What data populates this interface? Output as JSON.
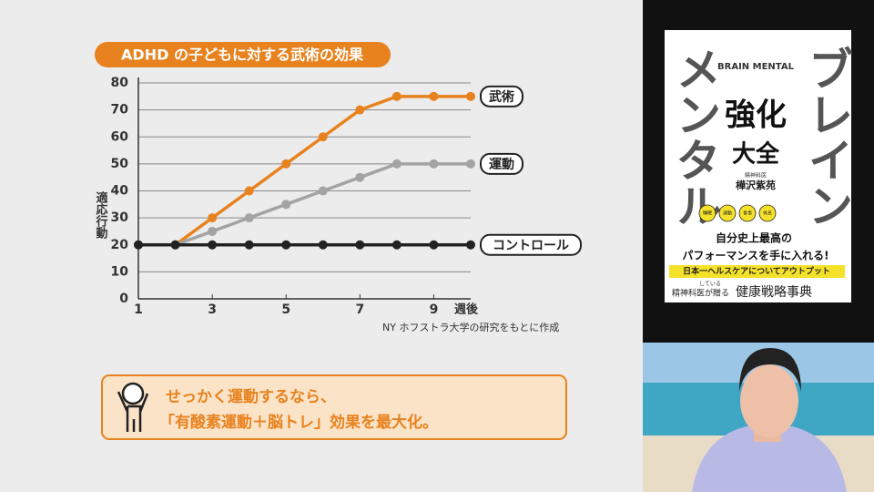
{
  "chart_data": {
    "type": "line",
    "title": "ADHD の子どもに対する武術の効果",
    "ylabel": "適応行動",
    "xlabel": "週後",
    "source": "NY ホフストラ大学の研究をもとに作成",
    "x": [
      1,
      2,
      3,
      4,
      5,
      6,
      7,
      8,
      9,
      10
    ],
    "xlim": [
      1,
      10
    ],
    "xticks": [
      1,
      3,
      5,
      7,
      9
    ],
    "ylim": [
      0,
      80
    ],
    "yticks": [
      0,
      10,
      20,
      30,
      40,
      50,
      60,
      70,
      80
    ],
    "grid": true,
    "series": [
      {
        "name": "武術",
        "color": "#e8821e",
        "values": [
          20,
          20,
          30,
          40,
          50,
          60,
          70,
          75,
          75,
          75
        ]
      },
      {
        "name": "運動",
        "color": "#a3a3a3",
        "values": [
          20,
          20,
          25,
          30,
          35,
          40,
          45,
          50,
          50,
          50
        ]
      },
      {
        "name": "コントロール",
        "color": "#222222",
        "values": [
          20,
          20,
          20,
          20,
          20,
          20,
          20,
          20,
          20,
          20
        ]
      }
    ]
  },
  "callout": {
    "lines": [
      "せっかく運動するなら、",
      "「有酸素運動＋脳トレ」効果を最大化。"
    ]
  },
  "book": {
    "brand": "BRAIN MENTAL",
    "title1": "強化",
    "title2": "大全",
    "author_role": "精神科医",
    "author": "樺沢紫苑",
    "big_right": "ブレイン",
    "big_left": "メンタル",
    "tags": [
      "睡眠",
      "運動",
      "食事",
      "休息"
    ],
    "catch1": "自分史上最高の",
    "catch2": "パフォーマンスを手に入れる!",
    "band": "日本一ヘルスケアについてアウトプット",
    "small": "している",
    "footer_left": "精神科医が贈る",
    "footer_right": "健康戦略事典"
  }
}
